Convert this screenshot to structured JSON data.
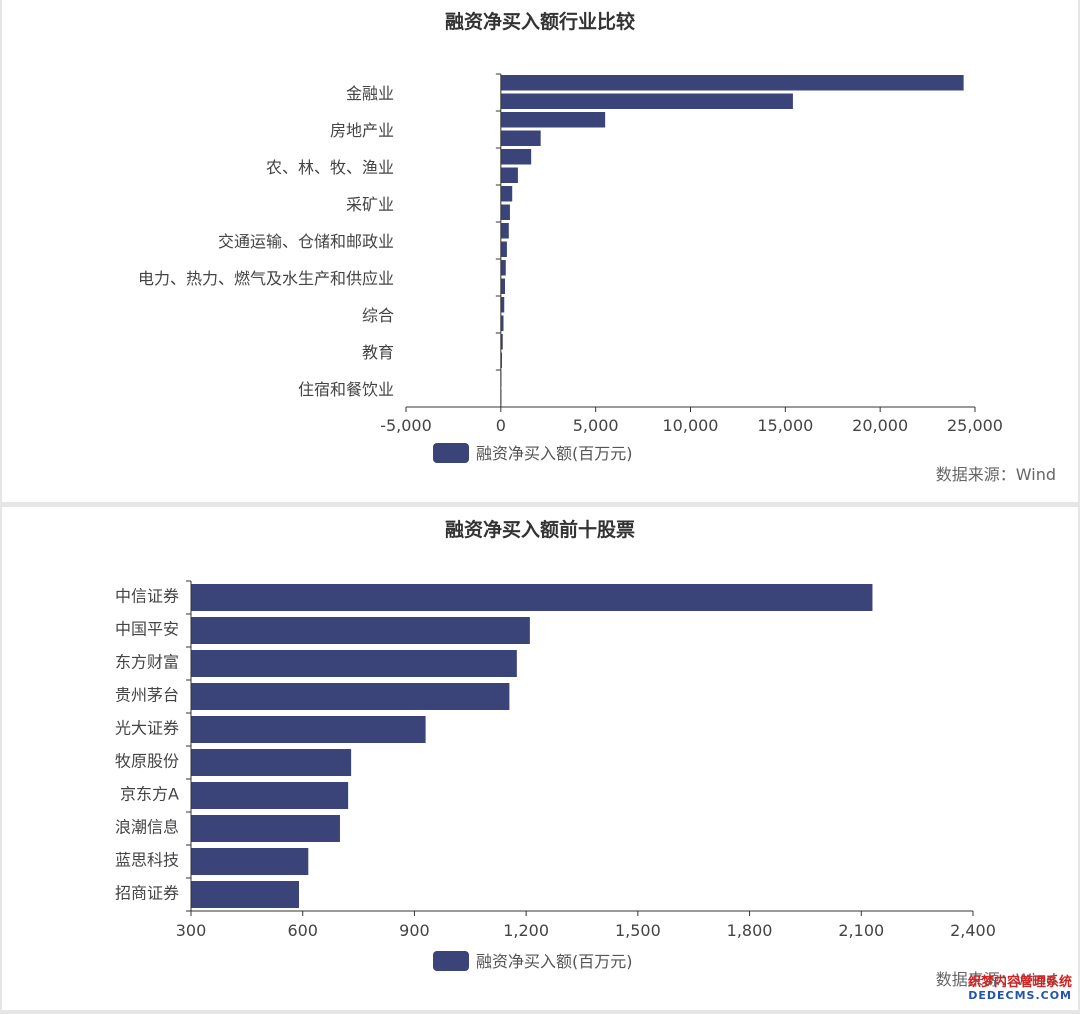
{
  "chart_data": [
    {
      "type": "bar",
      "orientation": "horizontal",
      "title": "融资净买入额行业比较",
      "categories_labeled": [
        "金融业",
        "房地产业",
        "农、林、牧、渔业",
        "采矿业",
        "交通运输、仓储和邮政业",
        "电力、热力、燃气及水生产和供应业",
        "综合",
        "教育",
        "住宿和餐饮业"
      ],
      "values": [
        24400,
        15400,
        5500,
        2100,
        1600,
        900,
        600,
        480,
        420,
        320,
        260,
        220,
        180,
        140,
        100,
        60,
        30,
        10
      ],
      "xlim": [
        -5000,
        25000
      ],
      "x_ticks": [
        "-5,000",
        "0",
        "5,000",
        "10,000",
        "15,000",
        "20,000",
        "25,000"
      ],
      "series": [
        {
          "name": "融资净买入额(百万元)"
        }
      ],
      "source": "数据来源：Wind",
      "legend_position": "bottom",
      "color": "#3a4479"
    },
    {
      "type": "bar",
      "orientation": "horizontal",
      "title": "融资净买入额前十股票",
      "categories": [
        "中信证券",
        "中国平安",
        "东方财富",
        "贵州茅台",
        "光大证券",
        "牧原股份",
        "京东方A",
        "浪潮信息",
        "蓝思科技",
        "招商证券"
      ],
      "values": [
        2130,
        1210,
        1175,
        1155,
        930,
        730,
        722,
        700,
        615,
        590
      ],
      "xlim": [
        300,
        2400
      ],
      "x_ticks": [
        "300",
        "600",
        "900",
        "1,200",
        "1,500",
        "1,800",
        "2,100",
        "2,400"
      ],
      "series": [
        {
          "name": "融资净买入额(百万元)"
        }
      ],
      "source": "数据来源：Wind",
      "legend_position": "bottom",
      "color": "#3a4479"
    }
  ],
  "watermark": {
    "line1": "织梦内容管理系统",
    "line2": "DEDECMS.COM"
  }
}
